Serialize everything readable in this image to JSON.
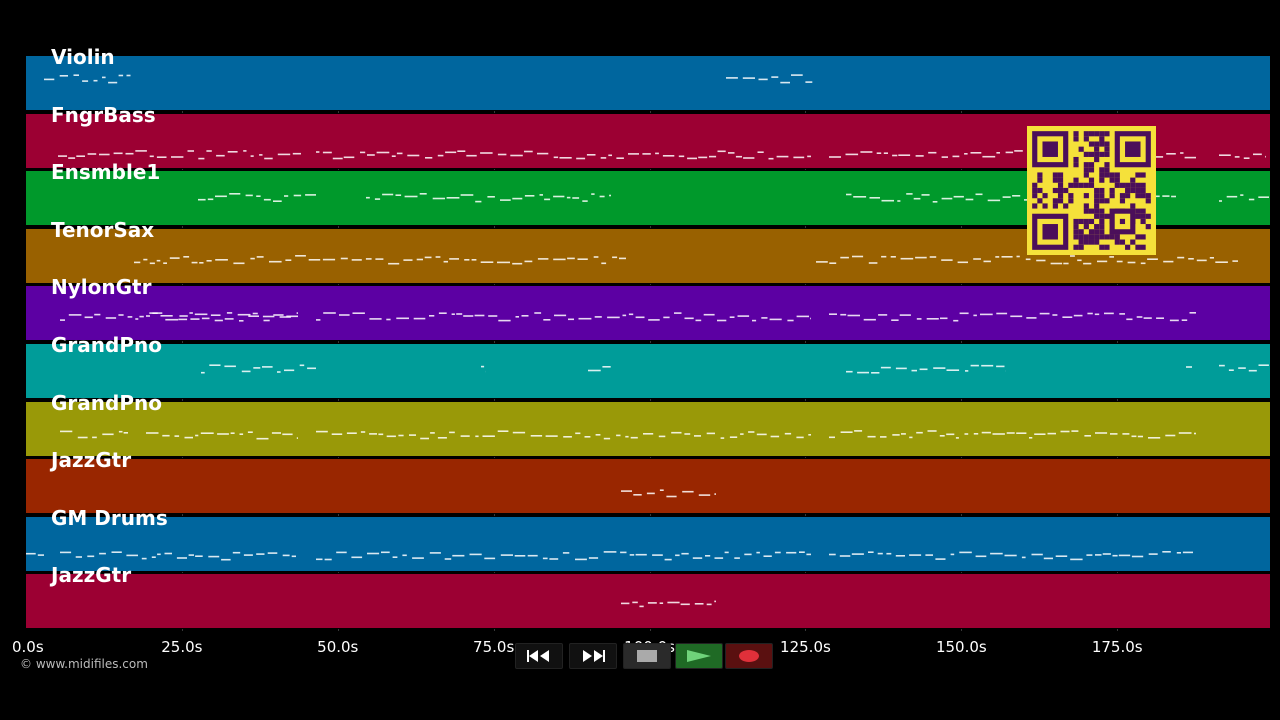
{
  "tracks": [
    {
      "name": "Violin",
      "color": "#00669e"
    },
    {
      "name": "FngrBass",
      "color": "#9c0033"
    },
    {
      "name": "Ensmble1",
      "color": "#00992b"
    },
    {
      "name": "TenorSax",
      "color": "#996100"
    },
    {
      "name": "NylonGtr",
      "color": "#5c00a3"
    },
    {
      "name": "GrandPno",
      "color": "#009c99"
    },
    {
      "name": "GrandPno",
      "color": "#999908"
    },
    {
      "name": "JazzGtr",
      "color": "#992600"
    },
    {
      "name": "GM Drums",
      "color": "#00669e"
    },
    {
      "name": "JazzGtr",
      "color": "#9c0033"
    }
  ],
  "timeline": {
    "max_seconds": 199.5,
    "tick_seconds": [
      0,
      25,
      50,
      75,
      100,
      125,
      150,
      175
    ],
    "tick_labels": [
      "0.0s",
      "25.0s",
      "50.0s",
      "75.0s",
      "100.0s",
      "125.0s",
      "150.0s",
      "175.0s"
    ]
  },
  "transport": {
    "rewind": "rewind-icon",
    "fast_forward": "fast-forward-icon",
    "stop": "stop-icon",
    "play": "play-icon",
    "record": "record-icon"
  },
  "copyright": "© www.midifiles.com",
  "qr_color": "#4b0f5a"
}
